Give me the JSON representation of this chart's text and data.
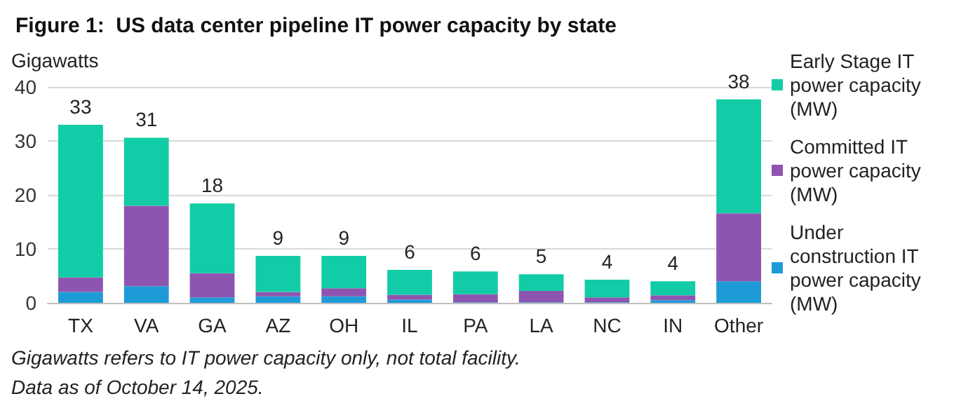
{
  "chart_data": {
    "type": "bar",
    "stacked": true,
    "title": "Figure 1:  US data center pipeline IT power capacity by state",
    "ylabel": "Gigawatts",
    "categories": [
      "TX",
      "VA",
      "GA",
      "AZ",
      "OH",
      "IL",
      "PA",
      "LA",
      "NC",
      "IN",
      "Other"
    ],
    "series": [
      {
        "name": "Under construction IT power capacity (MW)",
        "color": "#1e9bd7",
        "values": [
          2.0,
          3.1,
          1.0,
          1.2,
          1.2,
          0.6,
          0.1,
          0.1,
          0.1,
          0.5,
          4.0
        ]
      },
      {
        "name": "Committed IT power capacity (MW)",
        "color": "#8e55b0",
        "values": [
          2.7,
          14.9,
          4.5,
          0.8,
          1.5,
          0.9,
          1.5,
          2.1,
          0.9,
          0.9,
          12.6
        ]
      },
      {
        "name": "Early Stage IT power capacity (MW)",
        "color": "#11cca6",
        "values": [
          28.3,
          12.6,
          12.9,
          6.7,
          6.0,
          4.6,
          4.2,
          3.1,
          3.3,
          2.6,
          21.1
        ]
      }
    ],
    "totals": [
      "33",
      "31",
      "18",
      "9",
      "9",
      "6",
      "6",
      "5",
      "4",
      "4",
      "38"
    ],
    "ylim": [
      0,
      40
    ],
    "yticks": [
      0,
      10,
      20,
      30,
      40
    ],
    "grid": "y",
    "legend": "right",
    "annotations": [
      "Gigawatts refers to IT power capacity only, not total facility.",
      "Data as of October 14, 2025."
    ]
  }
}
